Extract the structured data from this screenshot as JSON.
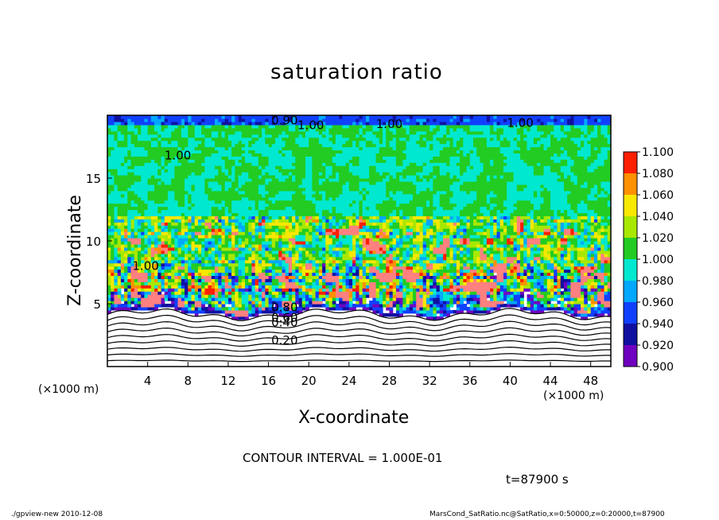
{
  "chart_data": {
    "type": "heatmap",
    "title": "saturation ratio",
    "xlabel": "X-coordinate",
    "ylabel": "Z-coordinate",
    "x_unit": "(×1000 m)",
    "y_unit": "(×1000 m)",
    "xlim": [
      0,
      50
    ],
    "ylim": [
      0,
      20
    ],
    "x_ticks": [
      4,
      8,
      12,
      16,
      20,
      24,
      28,
      32,
      36,
      40,
      44,
      48
    ],
    "y_ticks": [
      5,
      10,
      15
    ],
    "colorbar": {
      "levels": [
        0.9,
        0.92,
        0.94,
        0.96,
        0.98,
        1.0,
        1.02,
        1.04,
        1.06,
        1.08,
        1.1
      ],
      "labels": [
        "0.900",
        "0.920",
        "0.940",
        "0.960",
        "0.980",
        "1.000",
        "1.020",
        "1.040",
        "1.060",
        "1.080",
        "1.100"
      ],
      "colors": [
        "#7000c0",
        "#1010a0",
        "#1040ff",
        "#00a8ff",
        "#00e8d0",
        "#22cc22",
        "#a8e800",
        "#f8e800",
        "#ff9000",
        "#ff2000",
        "#ff8080"
      ]
    },
    "contour_labels": [
      {
        "text": "1.00",
        "x": 7.0,
        "z": 16.8
      },
      {
        "text": "0.90",
        "x": 17.6,
        "z": 19.6
      },
      {
        "text": "1.00",
        "x": 20.2,
        "z": 19.2
      },
      {
        "text": "1.00",
        "x": 28.0,
        "z": 19.3
      },
      {
        "text": "1.00",
        "x": 41.0,
        "z": 19.4
      },
      {
        "text": "1.00",
        "x": 3.8,
        "z": 8.0
      },
      {
        "text": "0.80",
        "x": 17.6,
        "z": 4.7
      },
      {
        "text": "0.60",
        "x": 17.6,
        "z": 3.9
      },
      {
        "text": "0.40",
        "x": 17.6,
        "z": 3.5
      },
      {
        "text": "0.20",
        "x": 17.6,
        "z": 2.1
      }
    ],
    "contour_interval": "CONTOUR INTERVAL = 1.000E-01",
    "time_label": "t=87900 s"
  },
  "footer": {
    "left": "./gpview-new   2010-12-08",
    "right": "MarsCond_SatRatio.nc@SatRatio,x=0:50000,z=0:20000,t=87900"
  }
}
